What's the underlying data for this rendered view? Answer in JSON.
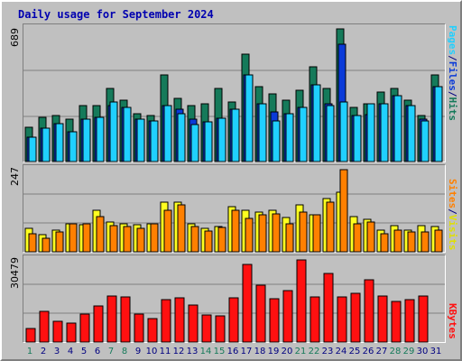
{
  "title": "Daily usage for September 2024",
  "colors": {
    "hits": "#157a5a",
    "files": "#0a3ad8",
    "pages": "#20d0ff",
    "visits": "#ffff20",
    "sites": "#ff8000",
    "kbytes": "#ff1010",
    "title": "#0000b0",
    "weekend": "#157a5a",
    "weekday": "#000080"
  },
  "chart_data": [
    {
      "type": "bar",
      "panel": "top",
      "max_label": "689",
      "right_label": [
        "Pages",
        "Files",
        "Hits"
      ],
      "x": [
        1,
        2,
        3,
        4,
        5,
        6,
        7,
        8,
        9,
        10,
        11,
        12,
        13,
        14,
        15,
        16,
        17,
        18,
        19,
        20,
        21,
        22,
        23,
        24,
        25,
        26,
        27,
        28,
        29,
        30,
        31
      ],
      "ylim": [
        0,
        689
      ],
      "series": [
        {
          "name": "Hits",
          "values": [
            180,
            230,
            240,
            220,
            290,
            290,
            380,
            320,
            250,
            240,
            450,
            330,
            290,
            300,
            380,
            310,
            560,
            390,
            350,
            320,
            370,
            490,
            380,
            689,
            280,
            300,
            360,
            380,
            320,
            240,
            450
          ]
        },
        {
          "name": "Files",
          "values": [
            125,
            175,
            195,
            155,
            220,
            230,
            290,
            280,
            220,
            210,
            290,
            270,
            220,
            205,
            225,
            270,
            450,
            300,
            260,
            250,
            280,
            400,
            300,
            610,
            240,
            245,
            300,
            340,
            290,
            220,
            390
          ]
        },
        {
          "name": "Pages",
          "values": [
            125,
            175,
            195,
            155,
            220,
            230,
            310,
            280,
            220,
            210,
            290,
            250,
            190,
            205,
            225,
            270,
            450,
            300,
            210,
            250,
            280,
            400,
            290,
            310,
            240,
            300,
            300,
            340,
            290,
            210,
            390
          ]
        }
      ]
    },
    {
      "type": "bar",
      "panel": "middle",
      "max_label": "247",
      "right_label": [
        "Sites",
        "Visits"
      ],
      "x": [
        1,
        2,
        3,
        4,
        5,
        6,
        7,
        8,
        9,
        10,
        11,
        12,
        13,
        14,
        15,
        16,
        17,
        18,
        19,
        20,
        21,
        22,
        23,
        24,
        25,
        26,
        27,
        28,
        29,
        30,
        31
      ],
      "ylim": [
        0,
        247
      ],
      "series": [
        {
          "name": "Visits",
          "values": [
            70,
            52,
            65,
            85,
            82,
            125,
            90,
            85,
            82,
            85,
            150,
            150,
            85,
            70,
            77,
            135,
            125,
            120,
            125,
            103,
            140,
            110,
            160,
            180,
            105,
            98,
            65,
            78,
            65,
            80,
            75
          ]
        },
        {
          "name": "Sites",
          "values": [
            55,
            40,
            60,
            83,
            83,
            105,
            80,
            75,
            70,
            85,
            125,
            140,
            75,
            62,
            72,
            125,
            100,
            110,
            115,
            85,
            120,
            110,
            150,
            247,
            85,
            90,
            55,
            65,
            60,
            60,
            65
          ]
        }
      ]
    },
    {
      "type": "bar",
      "panel": "bottom",
      "max_label": "30479",
      "right_label": [
        "KBytes"
      ],
      "x": [
        1,
        2,
        3,
        4,
        5,
        6,
        7,
        8,
        9,
        10,
        11,
        12,
        13,
        14,
        15,
        16,
        17,
        18,
        19,
        20,
        21,
        22,
        23,
        24,
        25,
        26,
        27,
        28,
        29,
        30,
        31
      ],
      "ylim": [
        0,
        30479
      ],
      "series": [
        {
          "name": "KBytes",
          "values": [
            5000,
            11500,
            7800,
            7200,
            10500,
            13300,
            17000,
            16800,
            10500,
            8600,
            15800,
            16400,
            13600,
            10000,
            9800,
            16500,
            28800,
            21000,
            16000,
            19000,
            31000,
            16600,
            25500,
            16600,
            18100,
            23200,
            17200,
            15200,
            15700,
            17000,
            0
          ]
        }
      ]
    }
  ],
  "days": [
    {
      "label": "1",
      "weekend": true
    },
    {
      "label": "2",
      "weekend": false
    },
    {
      "label": "3",
      "weekend": false
    },
    {
      "label": "4",
      "weekend": false
    },
    {
      "label": "5",
      "weekend": false
    },
    {
      "label": "6",
      "weekend": false
    },
    {
      "label": "7",
      "weekend": true
    },
    {
      "label": "8",
      "weekend": true
    },
    {
      "label": "9",
      "weekend": false
    },
    {
      "label": "10",
      "weekend": false
    },
    {
      "label": "11",
      "weekend": false
    },
    {
      "label": "12",
      "weekend": false
    },
    {
      "label": "13",
      "weekend": false
    },
    {
      "label": "14",
      "weekend": true
    },
    {
      "label": "15",
      "weekend": true
    },
    {
      "label": "16",
      "weekend": false
    },
    {
      "label": "17",
      "weekend": false
    },
    {
      "label": "18",
      "weekend": false
    },
    {
      "label": "19",
      "weekend": false
    },
    {
      "label": "20",
      "weekend": false
    },
    {
      "label": "21",
      "weekend": true
    },
    {
      "label": "22",
      "weekend": true
    },
    {
      "label": "23",
      "weekend": false
    },
    {
      "label": "24",
      "weekend": false
    },
    {
      "label": "25",
      "weekend": false
    },
    {
      "label": "26",
      "weekend": false
    },
    {
      "label": "27",
      "weekend": false
    },
    {
      "label": "28",
      "weekend": true
    },
    {
      "label": "29",
      "weekend": true
    },
    {
      "label": "30",
      "weekend": false
    },
    {
      "label": "31",
      "weekend": false
    }
  ]
}
